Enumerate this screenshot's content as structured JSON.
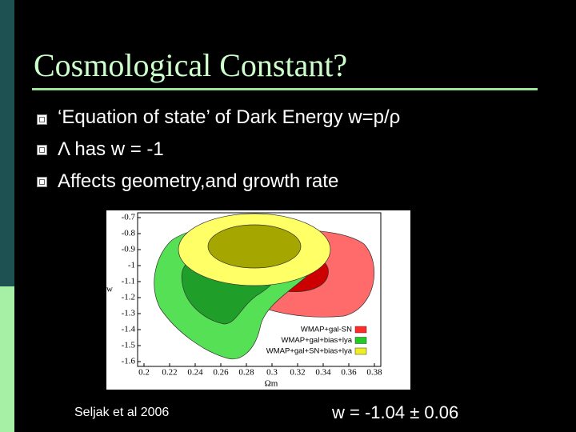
{
  "header": {
    "title": "Cosmological Constant?"
  },
  "bullets": [
    "‘Equation of state’ of Dark Energy w=p/ρ",
    "Λ has w = -1",
    "Affects geometry,and growth rate"
  ],
  "chart_data": {
    "type": "contour",
    "x_label": "Ωm",
    "y_label": "w",
    "xlim": [
      0.195,
      0.385
    ],
    "ylim": [
      -1.63,
      -0.67
    ],
    "xticks": [
      0.2,
      0.22,
      0.24,
      0.26,
      0.28,
      0.3,
      0.32,
      0.34,
      0.36,
      0.38
    ],
    "yticks": [
      -0.7,
      -0.8,
      -0.9,
      -1,
      -1.1,
      -1.2,
      -1.3,
      -1.4,
      -1.5,
      -1.6
    ],
    "legend": "lower right",
    "series": [
      {
        "name": "WMAP+gal-SN",
        "color": "#ff2a2a"
      },
      {
        "name": "WMAP+gal+bias+lya",
        "color": "#22cc22"
      },
      {
        "name": "WMAP+gal+SN+bias+lya",
        "color": "#eeee22"
      }
    ]
  },
  "caption": "Seljak et al 2006",
  "result": "w = -1.04 ± 0.06"
}
